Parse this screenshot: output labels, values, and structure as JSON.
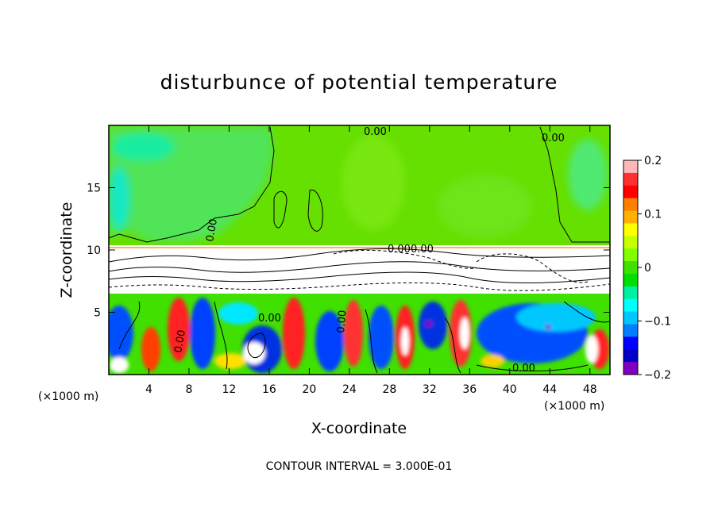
{
  "chart_data": {
    "type": "heatmap",
    "title": "disturbunce of potential temperature",
    "xlabel": "X-coordinate",
    "ylabel": "Z-coordinate",
    "x_unit": "(×1000 m)",
    "z_unit": "(×1000 m)",
    "x_ticks": [
      4,
      8,
      12,
      16,
      20,
      24,
      28,
      32,
      36,
      40,
      44,
      48
    ],
    "z_ticks": [
      5,
      10,
      15
    ],
    "xlim": [
      0,
      50
    ],
    "zlim": [
      0,
      20
    ],
    "colorbar": {
      "ticks": [
        "0.2",
        "0.1",
        "0",
        "−0.1",
        "−0.2"
      ],
      "range": [
        -0.2,
        0.2
      ],
      "colors": [
        "#ffb8b8",
        "#ff3030",
        "#ff0000",
        "#ff8000",
        "#ffb000",
        "#ffff00",
        "#c8ff00",
        "#80ff00",
        "#40e000",
        "#00e000",
        "#00f0a0",
        "#00ffff",
        "#00c8ff",
        "#0080ff",
        "#0000ff",
        "#0000c8",
        "#8000c0"
      ]
    },
    "contour_labels": [
      "0.00",
      "0.00",
      "0.00",
      "0.00",
      "0.00",
      "0.00",
      "0.00",
      "0.000.00"
    ],
    "footer": "CONTOUR INTERVAL = 3.000E-01"
  }
}
